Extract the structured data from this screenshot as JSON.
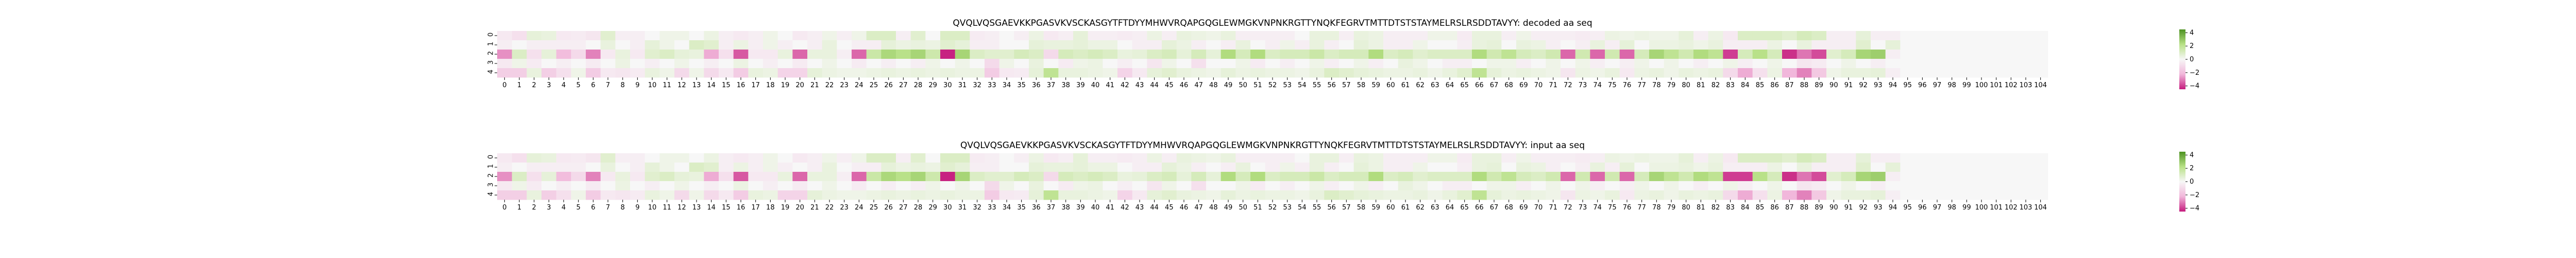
{
  "chart_data": [
    {
      "type": "heatmap",
      "title": "QVQLVQSGAEVKKPGASVKVSCKASGYTFTDYYMHWVRQAPGQGLEWMGKVNPNKRGTTYNQKFEGRVTMTTDTSTSTAYMELRSLRSDDTAVYY: decoded aa seq",
      "y_ticks": [
        "0",
        "1",
        "2",
        "3",
        "4"
      ],
      "x_range": [
        0,
        104
      ],
      "colorbar_ticks": [
        4,
        2,
        0,
        -2,
        -4
      ],
      "vlim": [
        -4.5,
        4.5
      ],
      "sparse_values": {
        "0": {
          "2": 0.6,
          "3": 0.5,
          "7": 0.8,
          "11": 0.3,
          "12": 0.3,
          "14": 0.4,
          "18": 0.3,
          "22": 0.3,
          "24": 0.3,
          "25": 1.0,
          "26": 1.0,
          "28": 0.8,
          "30": 1.0,
          "31": 1.0,
          "36": 0.4,
          "39": 0.6,
          "44": 0.4,
          "46": 0.5,
          "47": 0.4,
          "48": 0.3,
          "49": 0.5,
          "55": 0.5,
          "56": 0.5,
          "58": 0.5,
          "59": 0.4,
          "63": 0.3,
          "64": 0.3,
          "66": 0.5,
          "67": 0.5,
          "69": 0.3,
          "75": 0.4,
          "76": 0.3,
          "77": 0.4,
          "78": 0.3,
          "79": 0.3,
          "80": 0.6,
          "82": 0.4,
          "84": 1.0,
          "85": 1.0,
          "86": 1.0,
          "87": 0.8,
          "88": 1.2,
          "89": 1.0,
          "92": 0.6,
          "0": -0.5,
          "1": -0.8,
          "4": -0.5,
          "5": -0.4,
          "6": -0.6,
          "8": -0.3,
          "9": -0.3,
          "15": -0.3,
          "16": -0.5,
          "17": -0.3,
          "20": -0.5,
          "21": -0.3,
          "23": -0.3,
          "27": -0.3,
          "32": -0.4,
          "33": -0.3,
          "35": -0.3,
          "37": -0.5,
          "38": -0.3,
          "40": -0.3,
          "41": -0.3,
          "42": -0.4,
          "43": -0.3,
          "45": -0.3,
          "50": -0.3,
          "51": -0.3,
          "52": -0.3,
          "53": -0.3,
          "57": -0.3,
          "60": -0.3,
          "61": -0.3,
          "62": -0.3,
          "65": -0.4,
          "68": -0.3,
          "70": -0.3,
          "71": -0.3,
          "72": -0.3,
          "73": -0.4,
          "74": -0.3,
          "81": -0.3,
          "83": -0.5,
          "90": -0.3,
          "91": -0.3,
          "93": -0.3,
          "94": -0.3
        },
        "1": {
          "7": 0.5,
          "10": 0.6,
          "11": 0.3,
          "13": 1.0,
          "14": 0.8,
          "16": 0.4,
          "18": 0.3,
          "22": 0.5,
          "26": 0.6,
          "27": 0.4,
          "28": 0.5,
          "29": 0.4,
          "30": 0.8,
          "31": 0.6,
          "36": 0.6,
          "37": 0.5,
          "38": 0.5,
          "39": 0.6,
          "40": 0.4,
          "41": 0.4,
          "45": 0.6,
          "46": 0.4,
          "50": 0.5,
          "53": 0.3,
          "55": 0.5,
          "58": 0.6,
          "59": 0.4,
          "62": 0.3,
          "66": 0.5,
          "67": 0.6,
          "69": 0.5,
          "70": 0.4,
          "74": 0.5,
          "76": 0.6,
          "78": 0.4,
          "79": 0.4,
          "80": 0.5,
          "81": 0.3,
          "82": 0.5,
          "86": 0.4,
          "88": 0.5,
          "92": 0.8,
          "94": 0.6,
          "0": -0.3,
          "2": -0.3,
          "3": -0.3,
          "4": -0.3,
          "5": -0.3,
          "9": -0.3,
          "15": -0.3,
          "17": -0.3,
          "19": -0.3,
          "21": -0.3,
          "24": -0.3,
          "25": -0.3,
          "32": -0.3,
          "33": -0.3,
          "43": -0.3,
          "44": -0.3,
          "47": -0.3,
          "49": -0.3,
          "52": -0.3,
          "54": -0.3,
          "56": -0.3,
          "60": -0.3,
          "61": -0.3,
          "65": -0.3,
          "71": -0.3,
          "73": -0.3,
          "75": -0.3,
          "83": -0.3,
          "84": -0.3,
          "85": -0.3,
          "89": -0.3,
          "90": -0.3,
          "91": -0.3
        },
        "2": {
          "1": 1.0,
          "3": 0.6,
          "8": 0.5,
          "10": 0.8,
          "11": 1.0,
          "12": 0.6,
          "13": 0.5,
          "19": 0.5,
          "21": 0.5,
          "22": 0.5,
          "25": 1.6,
          "26": 2.5,
          "27": 2.2,
          "28": 2.6,
          "29": 1.5,
          "31": 2.6,
          "32": 1.0,
          "33": 0.8,
          "34": 0.8,
          "35": 1.2,
          "36": 1.0,
          "38": 1.2,
          "39": 1.0,
          "40": 1.2,
          "41": 1.0,
          "42": 0.5,
          "43": 0.6,
          "44": 1.0,
          "45": 1.2,
          "46": 0.6,
          "47": 1.2,
          "48": 0.6,
          "49": 2.4,
          "50": 1.2,
          "51": 2.4,
          "52": 1.0,
          "53": 1.2,
          "54": 1.2,
          "55": 1.6,
          "56": 1.0,
          "57": 1.2,
          "58": 1.2,
          "59": 2.4,
          "60": 1.0,
          "61": 1.2,
          "62": 0.8,
          "63": 1.0,
          "64": 1.0,
          "65": 1.0,
          "66": 2.4,
          "67": 1.4,
          "68": 2.0,
          "69": 1.2,
          "70": 1.0,
          "71": 1.4,
          "73": 1.4,
          "75": 1.4,
          "77": 1.2,
          "78": 2.6,
          "79": 2.0,
          "80": 1.4,
          "81": 2.4,
          "82": 2.0,
          "84": 1.2,
          "85": 2.2,
          "86": 1.2,
          "90": 0.8,
          "91": 1.2,
          "92": 2.6,
          "93": 2.8,
          "0": -2.8,
          "2": -0.8,
          "4": -2.0,
          "5": -1.0,
          "6": -3.0,
          "7": -0.5,
          "9": -0.5,
          "14": -2.4,
          "15": -0.8,
          "16": -3.6,
          "17": -0.5,
          "18": -0.5,
          "20": -3.4,
          "23": -0.3,
          "24": -3.4,
          "30": -4.4,
          "37": -1.0,
          "72": -3.4,
          "74": -3.4,
          "76": -3.4,
          "83": -4.0,
          "87": -4.2,
          "88": -3.2,
          "89": -3.8,
          "94": -0.3
        },
        "3": {
          "1": 0.3,
          "8": 0.4,
          "12": 0.3,
          "16": 0.4,
          "22": 0.3,
          "29": 0.3,
          "31": 0.3,
          "34": 0.3,
          "36": 0.5,
          "39": 0.3,
          "40": 0.4,
          "45": 0.3,
          "50": 0.3,
          "55": 0.3,
          "58": 0.3,
          "61": 0.5,
          "62": 0.3,
          "67": 0.3,
          "68": 0.3,
          "71": 0.3,
          "73": 0.3,
          "77": 0.3,
          "79": 0.3,
          "83": 0.3,
          "86": 0.3,
          "91": 0.3,
          "0": -0.5,
          "2": -0.4,
          "4": -0.3,
          "6": -0.4,
          "10": -0.3,
          "14": -0.3,
          "18": -0.3,
          "20": -0.4,
          "24": -0.4,
          "26": -0.3,
          "28": -0.3,
          "33": -1.0,
          "38": -0.4,
          "42": -0.3,
          "44": -0.6,
          "47": -0.8,
          "51": -0.4,
          "53": -0.3,
          "56": -0.3,
          "59": -0.3,
          "64": -0.3,
          "65": -0.3,
          "69": -0.3,
          "74": -0.3,
          "76": -0.3,
          "81": -0.3,
          "84": -0.3,
          "88": -0.6,
          "89": -0.4,
          "93": -0.3
        },
        "4": {
          "2": 0.5,
          "5": 0.3,
          "10": 0.5,
          "11": 0.3,
          "13": 0.3,
          "17": 0.5,
          "18": 0.4,
          "21": 0.6,
          "22": 0.4,
          "23": 0.3,
          "24": 0.3,
          "25": 0.4,
          "26": 0.5,
          "27": 0.4,
          "28": 0.5,
          "29": 0.4,
          "30": 0.5,
          "31": 0.4,
          "32": 0.4,
          "36": 0.6,
          "37": 2.0,
          "38": 0.5,
          "39": 0.5,
          "40": 0.4,
          "41": 0.3,
          "44": 0.6,
          "45": 0.8,
          "46": 0.5,
          "47": 0.4,
          "48": 0.3,
          "49": 0.6,
          "50": 0.4,
          "51": 0.5,
          "52": 0.4,
          "53": 0.4,
          "54": 0.3,
          "55": 0.5,
          "56": 1.0,
          "57": 0.8,
          "58": 0.6,
          "59": 0.5,
          "60": 0.4,
          "61": 0.4,
          "62": 0.5,
          "63": 0.3,
          "64": 0.5,
          "65": 0.8,
          "66": 2.0,
          "67": 0.6,
          "68": 0.4,
          "69": 0.5,
          "70": 0.4,
          "71": 0.3,
          "73": 0.4,
          "74": 0.3,
          "75": 0.5,
          "77": 0.4,
          "78": 0.5,
          "79": 0.3,
          "80": 0.5,
          "81": 0.4,
          "82": 0.5,
          "86": 0.4,
          "90": 0.3,
          "91": 0.5,
          "92": 0.5,
          "93": 0.6,
          "0": -1.4,
          "1": -1.4,
          "3": -1.4,
          "4": -0.8,
          "6": -1.5,
          "7": -0.5,
          "8": -0.6,
          "9": -0.4,
          "12": -1.0,
          "14": -1.0,
          "15": -0.5,
          "16": -1.5,
          "19": -1.2,
          "20": -1.2,
          "33": -1.5,
          "34": -0.5,
          "35": -0.4,
          "42": -1.2,
          "43": -0.5,
          "72": -0.6,
          "76": -0.5,
          "83": -1.0,
          "84": -2.4,
          "85": -0.8,
          "87": -2.2,
          "88": -3.0,
          "89": -1.6,
          "94": -0.3
        }
      }
    },
    {
      "type": "heatmap",
      "title": "QVQLVQSGAEVKKPGASVKVSCKASGYTFTDYYMHWVRQAPGQGLEWMGKVNPNKRGTTYNQKFEGRVTMTTDTSTSTAYMELRSLRSDDTAVYY: input aa seq",
      "y_ticks": [
        "0",
        "1",
        "2",
        "3",
        "4"
      ],
      "x_range": [
        0,
        104
      ],
      "colorbar_ticks": [
        4,
        2,
        0,
        -2,
        -4
      ],
      "vlim": [
        -4.5,
        4.5
      ],
      "sparse_values": {
        "0": {
          "2": 0.6,
          "3": 0.5,
          "7": 0.8,
          "11": 0.3,
          "12": 0.3,
          "14": 0.4,
          "18": 0.3,
          "22": 0.3,
          "24": 0.3,
          "25": 1.0,
          "26": 1.0,
          "28": 0.8,
          "30": 1.0,
          "31": 1.0,
          "36": 0.4,
          "39": 0.6,
          "44": 0.4,
          "46": 0.5,
          "47": 0.4,
          "48": 0.3,
          "49": 0.5,
          "55": 0.5,
          "56": 0.5,
          "58": 0.5,
          "59": 0.4,
          "63": 0.3,
          "64": 0.3,
          "66": 0.5,
          "67": 0.5,
          "69": 0.3,
          "75": 0.4,
          "76": 0.3,
          "77": 0.4,
          "78": 0.3,
          "79": 0.3,
          "80": 0.6,
          "82": 0.4,
          "84": 1.0,
          "85": 1.0,
          "86": 1.0,
          "87": 0.8,
          "88": 1.2,
          "89": 1.0,
          "92": 0.6,
          "0": -0.5,
          "1": -0.8,
          "4": -0.5,
          "5": -0.4,
          "6": -0.6,
          "8": -0.3,
          "9": -0.3,
          "15": -0.3,
          "16": -0.5,
          "17": -0.3,
          "20": -0.5,
          "21": -0.3,
          "23": -0.3,
          "27": -0.3,
          "32": -0.4,
          "33": -0.3,
          "35": -0.3,
          "37": -0.5,
          "38": -0.3,
          "40": -0.3,
          "41": -0.3,
          "42": -0.4,
          "43": -0.3,
          "45": -0.3,
          "50": -0.3,
          "51": -0.3,
          "52": -0.3,
          "53": -0.3,
          "57": -0.3,
          "60": -0.3,
          "61": -0.3,
          "62": -0.3,
          "65": -0.4,
          "68": -0.3,
          "70": -0.3,
          "71": -0.3,
          "72": -0.3,
          "73": -0.4,
          "74": -0.3,
          "81": -0.3,
          "83": -0.5,
          "90": -0.3,
          "91": -0.3,
          "93": -0.3,
          "94": -0.3
        },
        "1": {
          "7": 0.5,
          "10": 0.6,
          "11": 0.3,
          "13": 1.0,
          "14": 0.8,
          "16": 0.4,
          "18": 0.3,
          "22": 0.5,
          "26": 0.6,
          "27": 0.4,
          "28": 0.5,
          "29": 0.4,
          "30": 0.8,
          "31": 0.6,
          "36": 0.6,
          "37": 0.5,
          "38": 0.5,
          "39": 0.6,
          "40": 0.4,
          "41": 0.4,
          "45": 0.6,
          "46": 0.4,
          "50": 0.5,
          "53": 0.3,
          "55": 0.5,
          "58": 0.6,
          "59": 0.4,
          "62": 0.3,
          "66": 0.5,
          "67": 0.6,
          "69": 0.5,
          "70": 0.4,
          "74": 0.5,
          "76": 0.6,
          "78": 0.4,
          "79": 0.4,
          "80": 0.5,
          "81": 0.3,
          "82": 0.5,
          "86": 0.4,
          "88": 0.5,
          "92": 0.8,
          "94": 0.6,
          "0": -0.3,
          "2": -0.3,
          "3": -0.3,
          "4": -0.3,
          "5": -0.3,
          "9": -0.3,
          "15": -0.3,
          "17": -0.3,
          "19": -0.3,
          "21": -0.3,
          "24": -0.3,
          "25": -0.3,
          "32": -0.3,
          "33": -0.3,
          "43": -0.3,
          "44": -0.3,
          "47": -0.3,
          "49": -0.3,
          "52": -0.3,
          "54": -0.3,
          "56": -0.3,
          "60": -0.3,
          "61": -0.3,
          "65": -0.3,
          "71": -0.3,
          "73": -0.3,
          "75": -0.3,
          "83": -0.3,
          "84": -0.3,
          "85": -0.3,
          "89": -0.3,
          "90": -0.3,
          "91": -0.3
        },
        "2": {
          "1": 1.0,
          "3": 0.6,
          "8": 0.5,
          "10": 0.8,
          "11": 1.0,
          "12": 0.6,
          "13": 0.5,
          "19": 0.5,
          "21": 0.5,
          "22": 0.5,
          "25": 1.6,
          "26": 2.5,
          "27": 2.2,
          "28": 2.6,
          "29": 1.5,
          "31": 2.6,
          "32": 1.0,
          "33": 0.8,
          "34": 0.8,
          "35": 1.2,
          "36": 1.0,
          "38": 1.2,
          "39": 1.0,
          "40": 1.2,
          "41": 1.0,
          "42": 0.5,
          "43": 0.6,
          "44": 1.0,
          "45": 1.2,
          "46": 0.6,
          "47": 1.2,
          "48": 0.6,
          "49": 2.4,
          "50": 1.2,
          "51": 2.4,
          "52": 1.0,
          "53": 1.2,
          "54": 1.2,
          "55": 1.6,
          "56": 1.0,
          "57": 1.2,
          "58": 1.2,
          "59": 2.4,
          "60": 1.0,
          "61": 1.2,
          "62": 0.8,
          "63": 1.0,
          "64": 1.0,
          "65": 1.0,
          "66": 2.4,
          "67": 1.4,
          "68": 2.0,
          "69": 1.2,
          "70": 1.0,
          "71": 1.4,
          "73": 1.4,
          "75": 1.4,
          "77": 1.2,
          "78": 2.6,
          "79": 2.0,
          "80": 1.4,
          "81": 2.4,
          "82": 2.0,
          "85": 2.2,
          "86": 1.2,
          "90": 0.8,
          "91": 1.2,
          "92": 2.6,
          "93": 2.8,
          "0": -2.8,
          "2": -0.8,
          "4": -2.0,
          "5": -1.0,
          "6": -3.0,
          "7": -0.5,
          "9": -0.5,
          "14": -2.4,
          "15": -0.8,
          "16": -3.6,
          "17": -0.5,
          "18": -0.5,
          "20": -3.4,
          "23": -0.3,
          "24": -3.4,
          "30": -4.4,
          "37": -1.0,
          "72": -3.4,
          "74": -3.4,
          "76": -3.4,
          "83": -4.0,
          "84": -4.0,
          "87": -4.2,
          "88": -3.2,
          "89": -3.8,
          "94": -0.3
        },
        "3": {
          "1": 0.3,
          "8": 0.4,
          "12": 0.3,
          "16": 0.4,
          "22": 0.3,
          "29": 0.3,
          "31": 0.3,
          "34": 0.3,
          "36": 0.5,
          "39": 0.3,
          "40": 0.4,
          "45": 0.3,
          "50": 0.3,
          "55": 0.3,
          "58": 0.3,
          "61": 0.5,
          "62": 0.3,
          "67": 0.3,
          "68": 0.3,
          "71": 0.3,
          "73": 0.3,
          "77": 0.3,
          "79": 0.3,
          "83": 0.3,
          "86": 0.3,
          "91": 0.3,
          "0": -0.5,
          "2": -0.4,
          "4": -0.3,
          "6": -0.4,
          "10": -0.3,
          "14": -0.3,
          "18": -0.3,
          "20": -0.4,
          "24": -0.4,
          "26": -0.3,
          "28": -0.3,
          "33": -1.0,
          "38": -0.4,
          "42": -0.3,
          "44": -0.6,
          "47": -0.8,
          "51": -0.4,
          "53": -0.3,
          "56": -0.3,
          "59": -0.3,
          "64": -0.3,
          "65": -0.3,
          "69": -0.3,
          "74": -0.3,
          "76": -0.3,
          "81": -0.3,
          "84": -0.3,
          "88": -0.6,
          "89": -0.4,
          "93": -0.3
        },
        "4": {
          "2": 0.5,
          "5": 0.3,
          "10": 0.5,
          "11": 0.3,
          "13": 0.3,
          "17": 0.5,
          "18": 0.4,
          "21": 0.6,
          "22": 0.4,
          "23": 0.3,
          "24": 0.3,
          "25": 0.4,
          "26": 0.5,
          "27": 0.4,
          "28": 0.5,
          "29": 0.4,
          "30": 0.5,
          "31": 0.4,
          "32": 0.4,
          "36": 0.6,
          "37": 2.0,
          "38": 0.5,
          "39": 0.5,
          "40": 0.4,
          "41": 0.3,
          "44": 0.6,
          "45": 0.8,
          "46": 0.5,
          "47": 0.4,
          "48": 0.3,
          "49": 0.6,
          "50": 0.4,
          "51": 0.5,
          "52": 0.4,
          "53": 0.4,
          "54": 0.3,
          "55": 0.5,
          "56": 1.0,
          "57": 0.8,
          "58": 0.6,
          "59": 0.5,
          "60": 0.4,
          "61": 0.4,
          "62": 0.5,
          "63": 0.3,
          "64": 0.5,
          "65": 0.8,
          "66": 2.0,
          "67": 0.6,
          "68": 0.4,
          "69": 0.5,
          "70": 0.4,
          "71": 0.3,
          "73": 0.4,
          "74": 0.3,
          "75": 0.5,
          "77": 0.4,
          "78": 0.5,
          "79": 0.3,
          "80": 0.5,
          "81": 0.4,
          "82": 0.5,
          "86": 0.4,
          "90": 0.3,
          "91": 0.5,
          "92": 0.5,
          "93": 0.6,
          "0": -1.4,
          "1": -1.4,
          "3": -1.4,
          "4": -0.8,
          "6": -1.5,
          "7": -0.5,
          "8": -0.6,
          "9": -0.4,
          "12": -1.0,
          "14": -1.0,
          "15": -0.5,
          "16": -1.5,
          "19": -1.2,
          "20": -1.2,
          "33": -1.5,
          "34": -0.5,
          "35": -0.4,
          "42": -1.2,
          "43": -0.5,
          "72": -0.6,
          "76": -0.5,
          "83": -1.0,
          "84": -2.4,
          "85": -0.8,
          "87": -2.2,
          "88": -3.0,
          "89": -1.6,
          "94": -0.3
        }
      }
    }
  ],
  "colors": {
    "neg_strong": "#c51b7d",
    "neg_mid": "#f1b6da",
    "neutral": "#f7f7f7",
    "pos_mid": "#b8e186",
    "pos_strong": "#4d9221"
  }
}
